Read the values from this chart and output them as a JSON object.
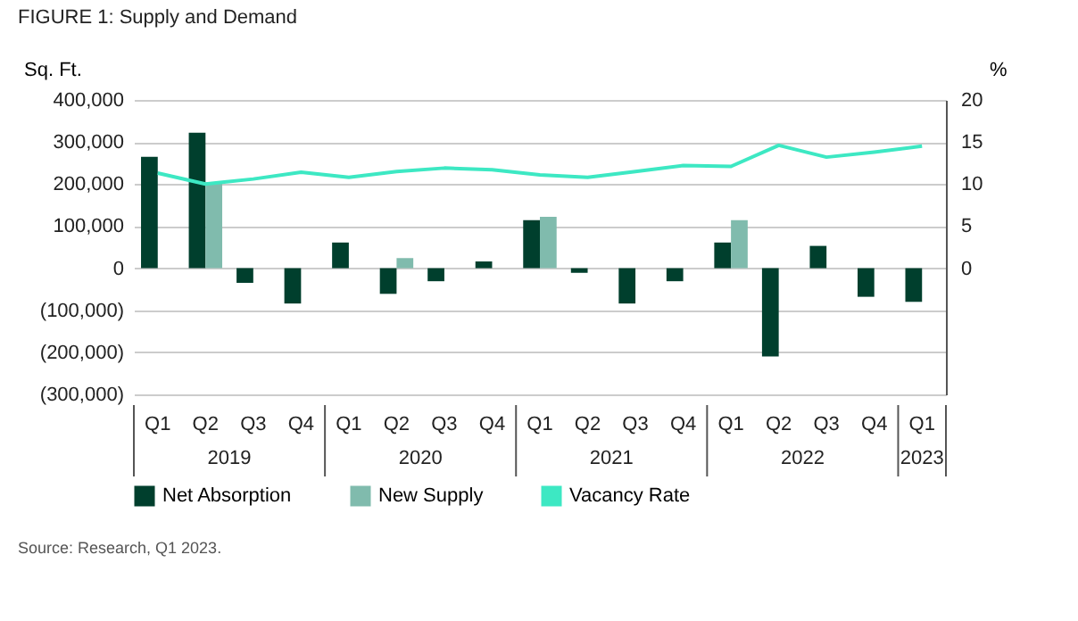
{
  "chart_data": {
    "type": "bar",
    "title": "FIGURE 1: Supply and Demand",
    "ylabel": "Sq. Ft.",
    "y2label": "%",
    "categories": [
      "Q1",
      "Q2",
      "Q3",
      "Q4",
      "Q1",
      "Q2",
      "Q3",
      "Q4",
      "Q1",
      "Q2",
      "Q3",
      "Q4",
      "Q1",
      "Q2",
      "Q3",
      "Q4",
      "Q1"
    ],
    "series": [
      {
        "name": "Net Absorption",
        "color": "#003f2d",
        "values": [
          265000,
          322000,
          -35000,
          -84000,
          61000,
          -61000,
          -31000,
          16000,
          114000,
          -11000,
          -84000,
          -31000,
          61000,
          -210000,
          53000,
          -68000,
          -80000
        ]
      },
      {
        "name": "New Supply",
        "color": "#80bbad",
        "values": [
          null,
          204000,
          null,
          null,
          null,
          24000,
          null,
          null,
          122000,
          null,
          null,
          null,
          114000,
          null,
          null,
          null,
          null
        ]
      },
      {
        "name": "Vacancy Rate",
        "color": "#3de8c3",
        "type": "line",
        "axis": "y2",
        "values": [
          11.3,
          10.0,
          10.6,
          11.4,
          10.8,
          11.5,
          11.9,
          11.7,
          11.1,
          10.8,
          11.5,
          12.2,
          12.1,
          14.6,
          13.2,
          13.8,
          14.5
        ]
      }
    ],
    "ylim": [
      -300000,
      400000
    ],
    "yticks": [
      {
        "value": -300000,
        "label": "(300,000)"
      },
      {
        "value": -200000,
        "label": "(200,000)"
      },
      {
        "value": -100000,
        "label": "(100,000)"
      },
      {
        "value": 0,
        "label": "0"
      },
      {
        "value": 100000,
        "label": "100,000"
      },
      {
        "value": 200000,
        "label": "200,000"
      },
      {
        "value": 300000,
        "label": "300,000"
      },
      {
        "value": 400000,
        "label": "400,000"
      }
    ],
    "y2lim": [
      -15,
      20
    ],
    "y2ticks": [
      0,
      5,
      10,
      15,
      20
    ],
    "grid": "y",
    "legend": "bottom",
    "annotations": [
      "2019",
      "2020",
      "2021",
      "2022",
      "2023",
      "Source: Research, Q1 2023."
    ]
  }
}
